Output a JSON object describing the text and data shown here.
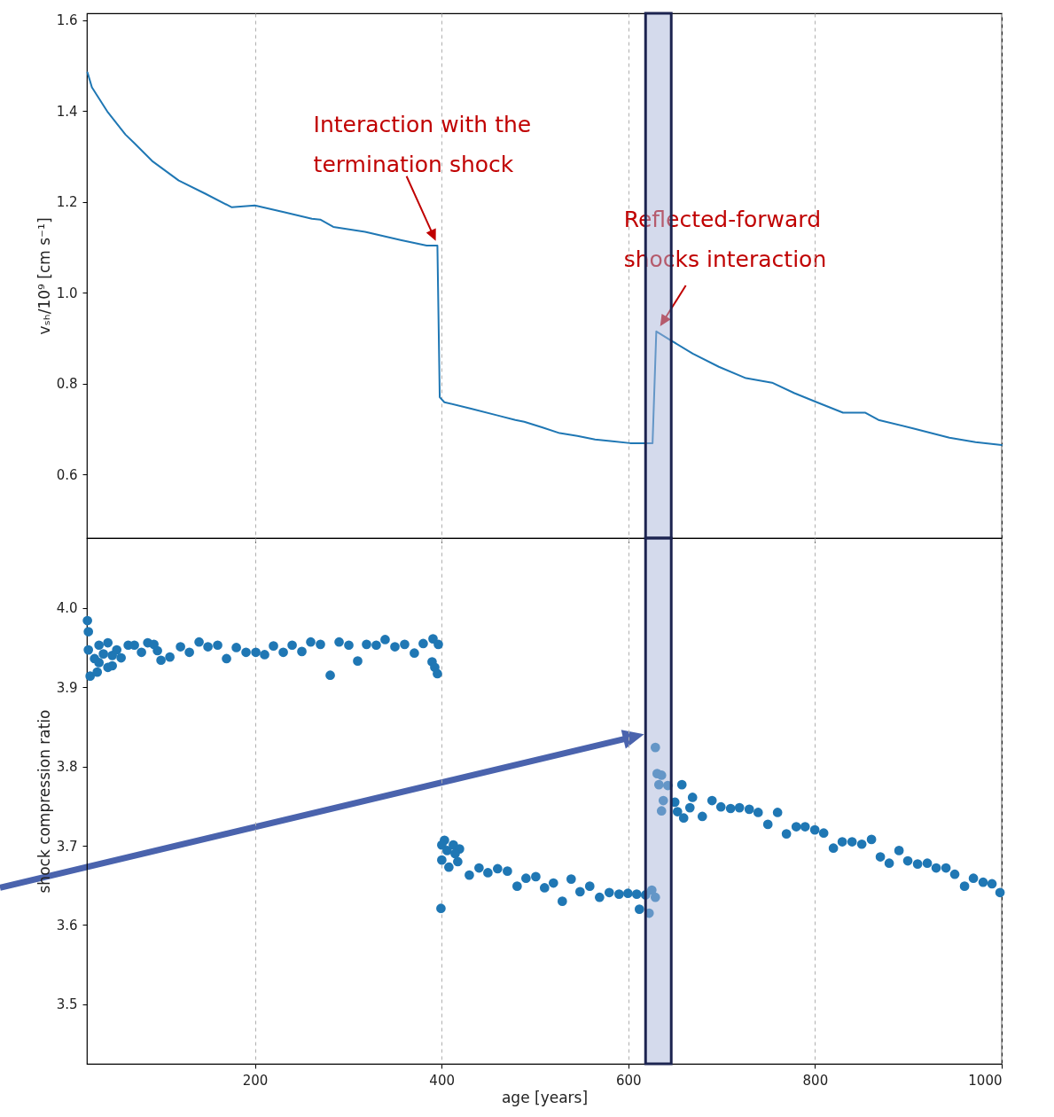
{
  "chart_data": [
    {
      "type": "line",
      "ylabel": "vₛₕ/10⁹ [cm s⁻¹]",
      "xlim": [
        20,
        1000
      ],
      "xticks": [
        200,
        400,
        600,
        800,
        1000
      ],
      "ylim": [
        0.46,
        1.615
      ],
      "yticks": [
        0.6,
        0.8,
        {
          "value": 1,
          "label": "1.0"
        },
        1.2,
        1.4,
        1.6
      ],
      "tick_labels": "y",
      "grid": "x",
      "series": [
        {
          "color": "#1f77b4",
          "x": [
            20.6,
            25.4,
            42.5,
            61.4,
            70.9,
            89.9,
            118.4,
            146.9,
            175.3,
            200,
            232,
            261,
            270,
            284,
            318,
            356,
            384,
            395.5,
            398,
            403,
            431.6,
            460,
            479,
            488.5,
            507.5,
            526.5,
            545.5,
            564.4,
            583,
            602,
            626,
            630,
            645,
            669,
            697,
            726,
            754,
            778,
            802,
            830,
            854,
            868,
            906,
            944,
            972,
            1000
          ],
          "values": [
            1.485,
            1.452,
            1.397,
            1.348,
            1.329,
            1.29,
            1.247,
            1.218,
            1.188,
            1.192,
            1.177,
            1.163,
            1.161,
            1.145,
            1.134,
            1.116,
            1.104,
            1.104,
            0.77,
            0.759,
            0.745,
            0.73,
            0.72,
            0.716,
            0.704,
            0.691,
            0.685,
            0.677,
            0.673,
            0.669,
            0.669,
            0.915,
            0.896,
            0.866,
            0.837,
            0.812,
            0.802,
            0.779,
            0.759,
            0.736,
            0.736,
            0.72,
            0.701,
            0.681,
            0.671,
            0.665
          ]
        }
      ],
      "bands": [
        {
          "axis": "x",
          "from": 618.5,
          "to": 646,
          "color": "#aab5da"
        }
      ],
      "annotations": [
        "Interaction with the termination shock",
        {
          "text": "Reflected-forward shocks interaction",
          "x": 630,
          "y": 0.915
        }
      ]
    },
    {
      "type": "scatter",
      "xlabel": "age [years]",
      "ylabel": "shock compression ratio",
      "xlim": [
        20,
        1000
      ],
      "xticks": [
        200,
        400,
        600,
        800,
        1000
      ],
      "ylim": [
        3.425,
        4.088
      ],
      "yticks": [
        3.5,
        3.6,
        3.7,
        3.8,
        3.9,
        {
          "value": 4,
          "label": "4.0"
        }
      ],
      "grid": "x",
      "marker": "circle",
      "series": [
        {
          "color": "#1f77b4",
          "x": [
            20.6,
            21.6,
            21.6,
            23.5,
            28.2,
            33,
            33,
            37.7,
            42.5,
            47.2,
            31.1,
            42.5,
            47.2,
            52,
            56.7,
            64.3,
            70.9,
            78.5,
            85.2,
            91.8,
            95.6,
            99.4,
            108.9,
            120.3,
            129.8,
            140.2,
            149.7,
            160.1,
            169.6,
            180.1,
            190.5,
            201,
            210.4,
            219.9,
            230.4,
            239.9,
            250.3,
            259.8,
            270.2,
            280.7,
            290.2,
            300.6,
            310.1,
            319.6,
            330,
            339.5,
            350,
            360.4,
            370.8,
            380.3,
            390.8,
            396.5,
            389.8,
            392.7,
            395.5,
            399.3,
            403.1,
            400.2,
            412.6,
            419.2,
            400.2,
            407.8,
            417.3,
            405.9,
            414.5,
            429.7,
            440.1,
            449.6,
            460,
            470.5,
            480.9,
            490.4,
            500.9,
            510.3,
            519.8,
            529.3,
            538.8,
            548.3,
            558.7,
            569.2,
            579.6,
            590.1,
            599.6,
            609,
            611.9,
            618.5,
            622.3,
            625.2,
            629,
            629,
            630.9,
            635.6,
            632.8,
            642.3,
            657.4,
            637.5,
            635.6,
            649.8,
            659.3,
            668.8,
            666,
            652.7,
            679.3,
            689.7,
            699.2,
            709.6,
            719.1,
            729.6,
            739.1,
            749.5,
            759.9,
            769.4,
            779.9,
            789.4,
            799.8,
            809.3,
            819.7,
            829.2,
            839.7,
            850.1,
            860.5,
            870,
            879.5,
            890,
            899.4,
            909.9,
            920.3,
            929.8,
            940.3,
            949.7,
            960.2,
            969.7,
            980.1,
            989.6,
            998.2
          ],
          "values": [
            3.984,
            3.97,
            3.947,
            3.914,
            3.936,
            3.953,
            3.931,
            3.942,
            3.956,
            3.94,
            3.919,
            3.925,
            3.927,
            3.947,
            3.937,
            3.953,
            3.953,
            3.944,
            3.956,
            3.954,
            3.946,
            3.934,
            3.938,
            3.951,
            3.944,
            3.957,
            3.951,
            3.953,
            3.936,
            3.95,
            3.944,
            3.944,
            3.941,
            3.952,
            3.944,
            3.953,
            3.945,
            3.957,
            3.954,
            3.915,
            3.957,
            3.953,
            3.933,
            3.954,
            3.953,
            3.96,
            3.951,
            3.954,
            3.943,
            3.955,
            3.961,
            3.954,
            3.932,
            3.925,
            3.917,
            3.621,
            3.707,
            3.701,
            3.701,
            3.696,
            3.682,
            3.673,
            3.68,
            3.694,
            3.69,
            3.663,
            3.672,
            3.666,
            3.671,
            3.668,
            3.649,
            3.659,
            3.661,
            3.647,
            3.653,
            3.63,
            3.658,
            3.642,
            3.649,
            3.635,
            3.641,
            3.639,
            3.64,
            3.639,
            3.62,
            3.638,
            3.615,
            3.644,
            3.635,
            3.824,
            3.791,
            3.789,
            3.777,
            3.776,
            3.777,
            3.757,
            3.744,
            3.755,
            3.735,
            3.761,
            3.748,
            3.743,
            3.737,
            3.757,
            3.749,
            3.747,
            3.748,
            3.746,
            3.742,
            3.727,
            3.742,
            3.715,
            3.724,
            3.724,
            3.72,
            3.716,
            3.697,
            3.705,
            3.705,
            3.702,
            3.708,
            3.686,
            3.678,
            3.694,
            3.681,
            3.677,
            3.678,
            3.672,
            3.672,
            3.664,
            3.649,
            3.659,
            3.654,
            3.652,
            3.641
          ]
        }
      ],
      "bands": [
        {
          "axis": "x",
          "from": 618.5,
          "to": 646,
          "color": "#aab5da"
        }
      ]
    }
  ]
}
